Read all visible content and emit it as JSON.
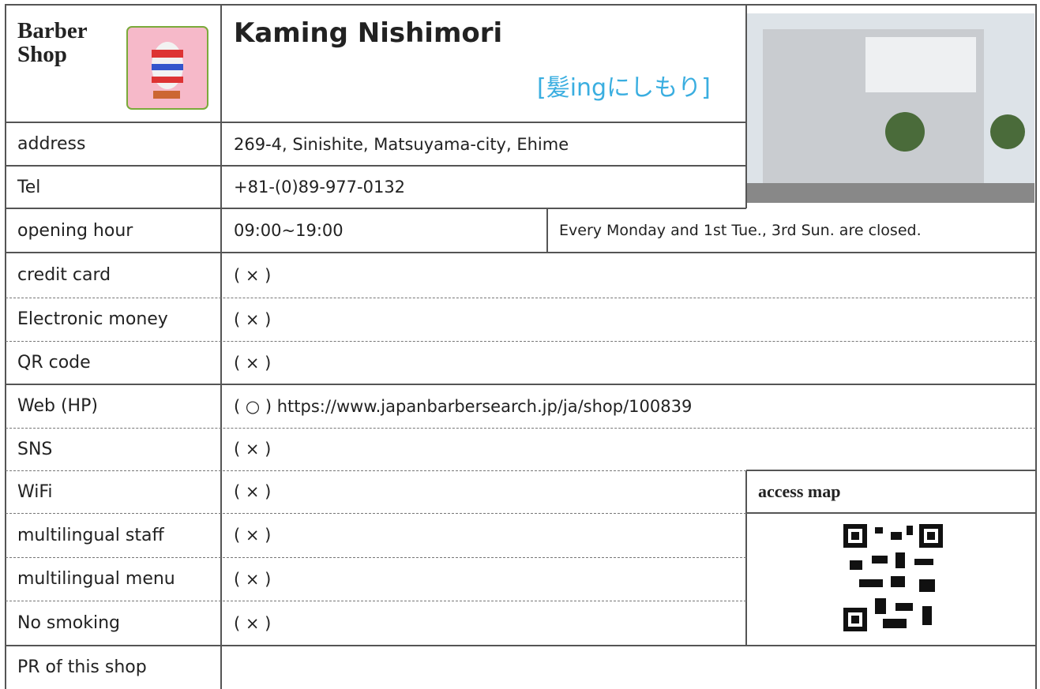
{
  "header": {
    "shop_type": "Barber Shop",
    "name": "Kaming Nishimori",
    "japanese_name": "[髪ingにしもり]"
  },
  "rows": [
    {
      "label": "address",
      "value": "269-4, Sinishite, Matsuyama-city, Ehime"
    },
    {
      "label": "Tel",
      "value": "+81-(0)89-977-0132"
    },
    {
      "label": "opening hour",
      "value": "09:00~19:00",
      "note": "Every Monday and 1st Tue., 3rd Sun. are closed."
    },
    {
      "label": "credit card",
      "value": "( × )"
    },
    {
      "label": "Electronic money",
      "value": "( × )"
    },
    {
      "label": "QR code",
      "value": "( × )"
    },
    {
      "label": "Web (HP)",
      "value": "( ○ ) https://www.japanbarbersearch.jp/ja/shop/100839"
    },
    {
      "label": "SNS",
      "value": "( × )"
    },
    {
      "label": "WiFi",
      "value": "( × )"
    },
    {
      "label": "multilingual staff",
      "value": "( × )"
    },
    {
      "label": "multilingual menu",
      "value": "( × )"
    },
    {
      "label": "No smoking",
      "value": "( × )"
    }
  ],
  "access_map": "access map",
  "pr_label": "PR of this shop"
}
